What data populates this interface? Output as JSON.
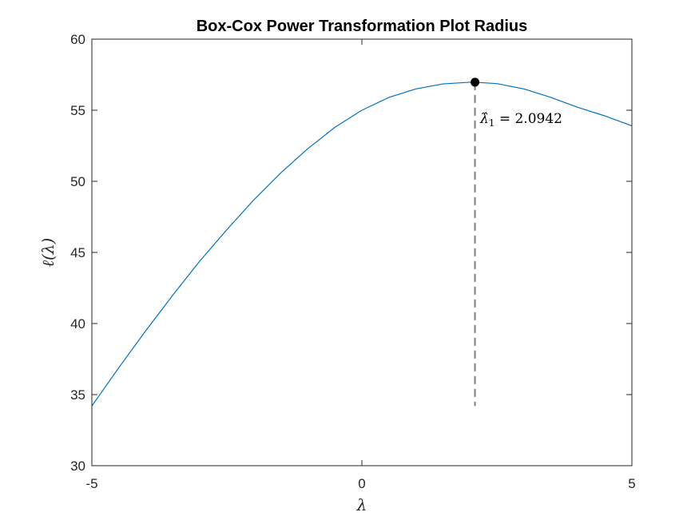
{
  "chart_data": {
    "type": "line",
    "title": "Box-Cox Power Transformation Plot Radius",
    "xlabel": "λ",
    "ylabel": "ℓ(λ)",
    "xlim": [
      -5,
      5
    ],
    "ylim": [
      30,
      60
    ],
    "xticks": [
      -5,
      0,
      5
    ],
    "yticks": [
      30,
      35,
      40,
      45,
      50,
      55,
      60
    ],
    "grid": false,
    "legend": "none",
    "series": [
      {
        "color": "#0072BD",
        "x": [
          -5,
          -4.5,
          -4,
          -3.5,
          -3,
          -2.5,
          -2,
          -1.5,
          -1,
          -0.5,
          0,
          0.5,
          1,
          1.5,
          2,
          2.0942,
          2.5,
          3,
          3.5,
          4,
          4.5,
          5
        ],
        "y": [
          34.2,
          36.9,
          39.5,
          42.0,
          44.4,
          46.6,
          48.7,
          50.6,
          52.3,
          53.8,
          55.0,
          55.9,
          56.5,
          56.85,
          56.97,
          56.97,
          56.87,
          56.5,
          55.9,
          55.2,
          54.6,
          53.9
        ]
      }
    ],
    "optimum": {
      "x": 2.0942,
      "y": 56.97,
      "marker_color": "#000000",
      "line_color": "#7f7f7f",
      "line_bottom_y": 34.2,
      "label_hat": "λ̂",
      "label_sub": "1",
      "label_rest": " = 2.0942"
    }
  }
}
